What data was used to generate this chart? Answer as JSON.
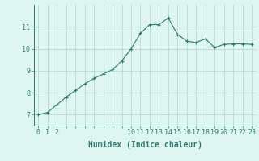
{
  "x": [
    0,
    1,
    2,
    3,
    4,
    5,
    6,
    7,
    8,
    9,
    10,
    11,
    12,
    13,
    14,
    15,
    16,
    17,
    18,
    19,
    20,
    21,
    22,
    23
  ],
  "y": [
    7.0,
    7.1,
    7.45,
    7.8,
    8.1,
    8.4,
    8.65,
    8.85,
    9.05,
    9.45,
    10.0,
    10.7,
    11.1,
    11.1,
    11.4,
    10.65,
    10.35,
    10.28,
    10.45,
    10.05,
    10.2,
    10.22,
    10.22,
    10.2
  ],
  "line_color": "#2a7d6e",
  "marker": "+",
  "marker_size": 3,
  "bg_color": "#dff5f0",
  "grid_color": "#aad8d0",
  "xlabel": "Humidex (Indice chaleur)",
  "ylabel": "",
  "xlim": [
    -0.5,
    23.5
  ],
  "ylim": [
    6.5,
    12.0
  ],
  "yticks": [
    7,
    8,
    9,
    10,
    11
  ],
  "xtick_labels": [
    "0",
    "1",
    "2",
    "",
    "",
    "",
    "",
    "",
    "",
    "",
    "10",
    "11",
    "12",
    "13",
    "14",
    "15",
    "16",
    "17",
    "18",
    "19",
    "20",
    "21",
    "22",
    "23"
  ],
  "xlabel_fontsize": 7,
  "tick_fontsize": 6,
  "line_width": 0.8
}
